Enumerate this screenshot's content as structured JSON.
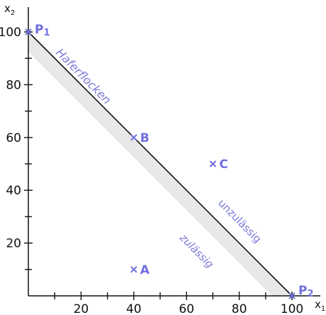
{
  "chart_data": {
    "type": "line",
    "xlabel": "x",
    "xlabel_sub": "1",
    "ylabel": "x",
    "ylabel_sub": "2",
    "xlim": [
      0,
      110
    ],
    "ylim": [
      0,
      110
    ],
    "x_ticks": [
      20,
      40,
      60,
      80,
      100
    ],
    "y_ticks": [
      20,
      40,
      60,
      80,
      100
    ],
    "grid": false,
    "constraint_line": {
      "name": "Haferflocken",
      "from": [
        0,
        100
      ],
      "to": [
        100,
        0
      ]
    },
    "points": [
      {
        "label": "P",
        "sub": "1",
        "x": 0,
        "y": 100
      },
      {
        "label": "P",
        "sub": "2",
        "x": 100,
        "y": 0
      },
      {
        "label": "A",
        "sub": "",
        "x": 40,
        "y": 10
      },
      {
        "label": "B",
        "sub": "",
        "x": 40,
        "y": 60
      },
      {
        "label": "C",
        "sub": "",
        "x": 70,
        "y": 50
      }
    ],
    "annotations": [
      "Haferflocken",
      "unzulässig",
      "zulässig"
    ],
    "colors": {
      "points": "#6f6fe0",
      "annotations": "#7a7ad8",
      "feasible_band": "#e8e8e8",
      "line": "#111111"
    }
  }
}
